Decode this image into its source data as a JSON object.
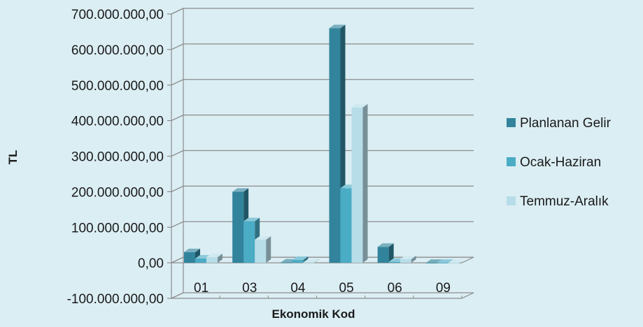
{
  "chart_data": {
    "type": "bar",
    "title": "",
    "xlabel": "Ekonomik Kod",
    "ylabel": "TL",
    "categories": [
      "01",
      "03",
      "04",
      "05",
      "06",
      "09"
    ],
    "series": [
      {
        "name": "Planlanan Gelir",
        "color": "#31849b",
        "values": [
          30000000,
          200000000,
          1000000,
          660000000,
          45000000,
          0
        ]
      },
      {
        "name": "Ocak-Haziran",
        "color": "#4bacc6",
        "values": [
          12000000,
          117000000,
          8000000,
          210000000,
          3000000,
          0
        ]
      },
      {
        "name": "Temmuz-Aralık",
        "color": "#b7dde8",
        "values": [
          16000000,
          65000000,
          1000000,
          437000000,
          10000000,
          0
        ]
      }
    ],
    "ylim": [
      -100000000,
      700000000
    ],
    "yticks": [
      -100000000,
      0,
      100000000,
      200000000,
      300000000,
      400000000,
      500000000,
      600000000,
      700000000
    ],
    "ytick_labels": [
      "-100.000.000,00",
      "0,00",
      "100.000.000,00",
      "200.000.000,00",
      "300.000.000,00",
      "400.000.000,00",
      "500.000.000,00",
      "600.000.000,00",
      "700.000.000,00"
    ],
    "grid": true,
    "legend_position": "right",
    "style": "3d-clustered-column"
  }
}
